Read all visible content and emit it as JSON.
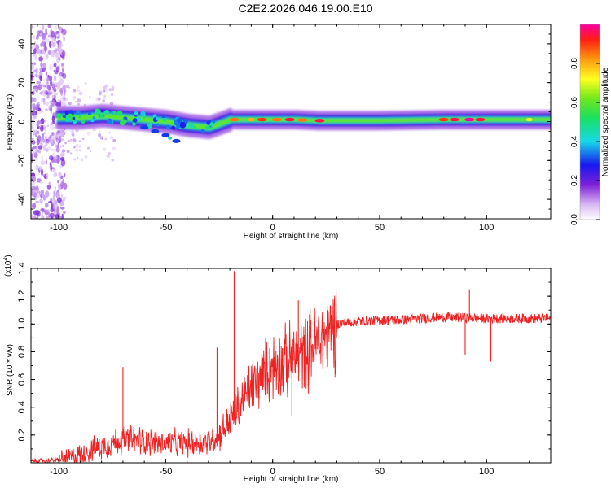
{
  "title": "C2E2.2026.046.19.00.E10",
  "chart_data": [
    {
      "type": "heatmap",
      "name": "spectrogram",
      "xlabel": "Height of straight line (km)",
      "ylabel": "Frequency (Hz)",
      "xlim": [
        -113,
        130
      ],
      "ylim": [
        -50,
        50
      ],
      "xticks": [
        -100,
        -50,
        0,
        50,
        100
      ],
      "yticks": [
        -40,
        -20,
        0,
        20,
        40
      ],
      "colorbar": {
        "label": "Normalized spectral amplitude",
        "range": [
          0,
          1
        ],
        "ticks": [
          0.0,
          0.2,
          0.4,
          0.6,
          0.8
        ]
      },
      "ridge": {
        "description": "dominant frequency track",
        "x": [
          -100,
          -90,
          -80,
          -70,
          -60,
          -50,
          -40,
          -30,
          -25,
          -20,
          -10,
          0,
          10,
          20,
          30,
          50,
          80,
          100,
          130
        ],
        "y": [
          2,
          2,
          3,
          2,
          1,
          0,
          -2,
          -3,
          -1,
          1,
          1,
          1,
          1,
          0.5,
          0.5,
          0.5,
          1,
          1,
          1
        ]
      },
      "secondary_branch": {
        "x": [
          -60,
          -55,
          -50,
          -45
        ],
        "y": [
          -3,
          -5,
          -7,
          -10
        ]
      }
    },
    {
      "type": "line",
      "name": "snr",
      "xlabel": "Height of straight line (km)",
      "ylabel": "SNR (10 * v/v)",
      "yscale_note": "(x10",
      "yscale_exp": "4",
      "yscale_close": ")",
      "xlim": [
        -113,
        130
      ],
      "ylim": [
        0,
        1.4
      ],
      "xticks": [
        -100,
        -50,
        0,
        50,
        100
      ],
      "yticks": [
        0.2,
        0.4,
        0.6,
        0.8,
        1.0,
        1.2,
        1.4
      ],
      "color": "#ee2222",
      "trend": {
        "x": [
          -113,
          -100,
          -90,
          -80,
          -70,
          -60,
          -50,
          -40,
          -30,
          -25,
          -20,
          -10,
          0,
          10,
          20,
          30,
          40,
          60,
          80,
          100,
          130
        ],
        "y": [
          0.01,
          0.02,
          0.06,
          0.12,
          0.17,
          0.16,
          0.14,
          0.14,
          0.15,
          0.2,
          0.3,
          0.55,
          0.7,
          0.75,
          0.85,
          1.0,
          1.02,
          1.03,
          1.05,
          1.04,
          1.04
        ]
      },
      "spikes": [
        {
          "x": -70,
          "y": 0.69
        },
        {
          "x": -26,
          "y": 0.83
        },
        {
          "x": -18,
          "y": 1.38
        },
        {
          "x": 12,
          "y": 1.17
        },
        {
          "x": 9,
          "y": 0.34
        },
        {
          "x": 92,
          "y": 1.25
        },
        {
          "x": 90,
          "y": 0.78
        },
        {
          "x": 102,
          "y": 0.73
        }
      ]
    }
  ]
}
